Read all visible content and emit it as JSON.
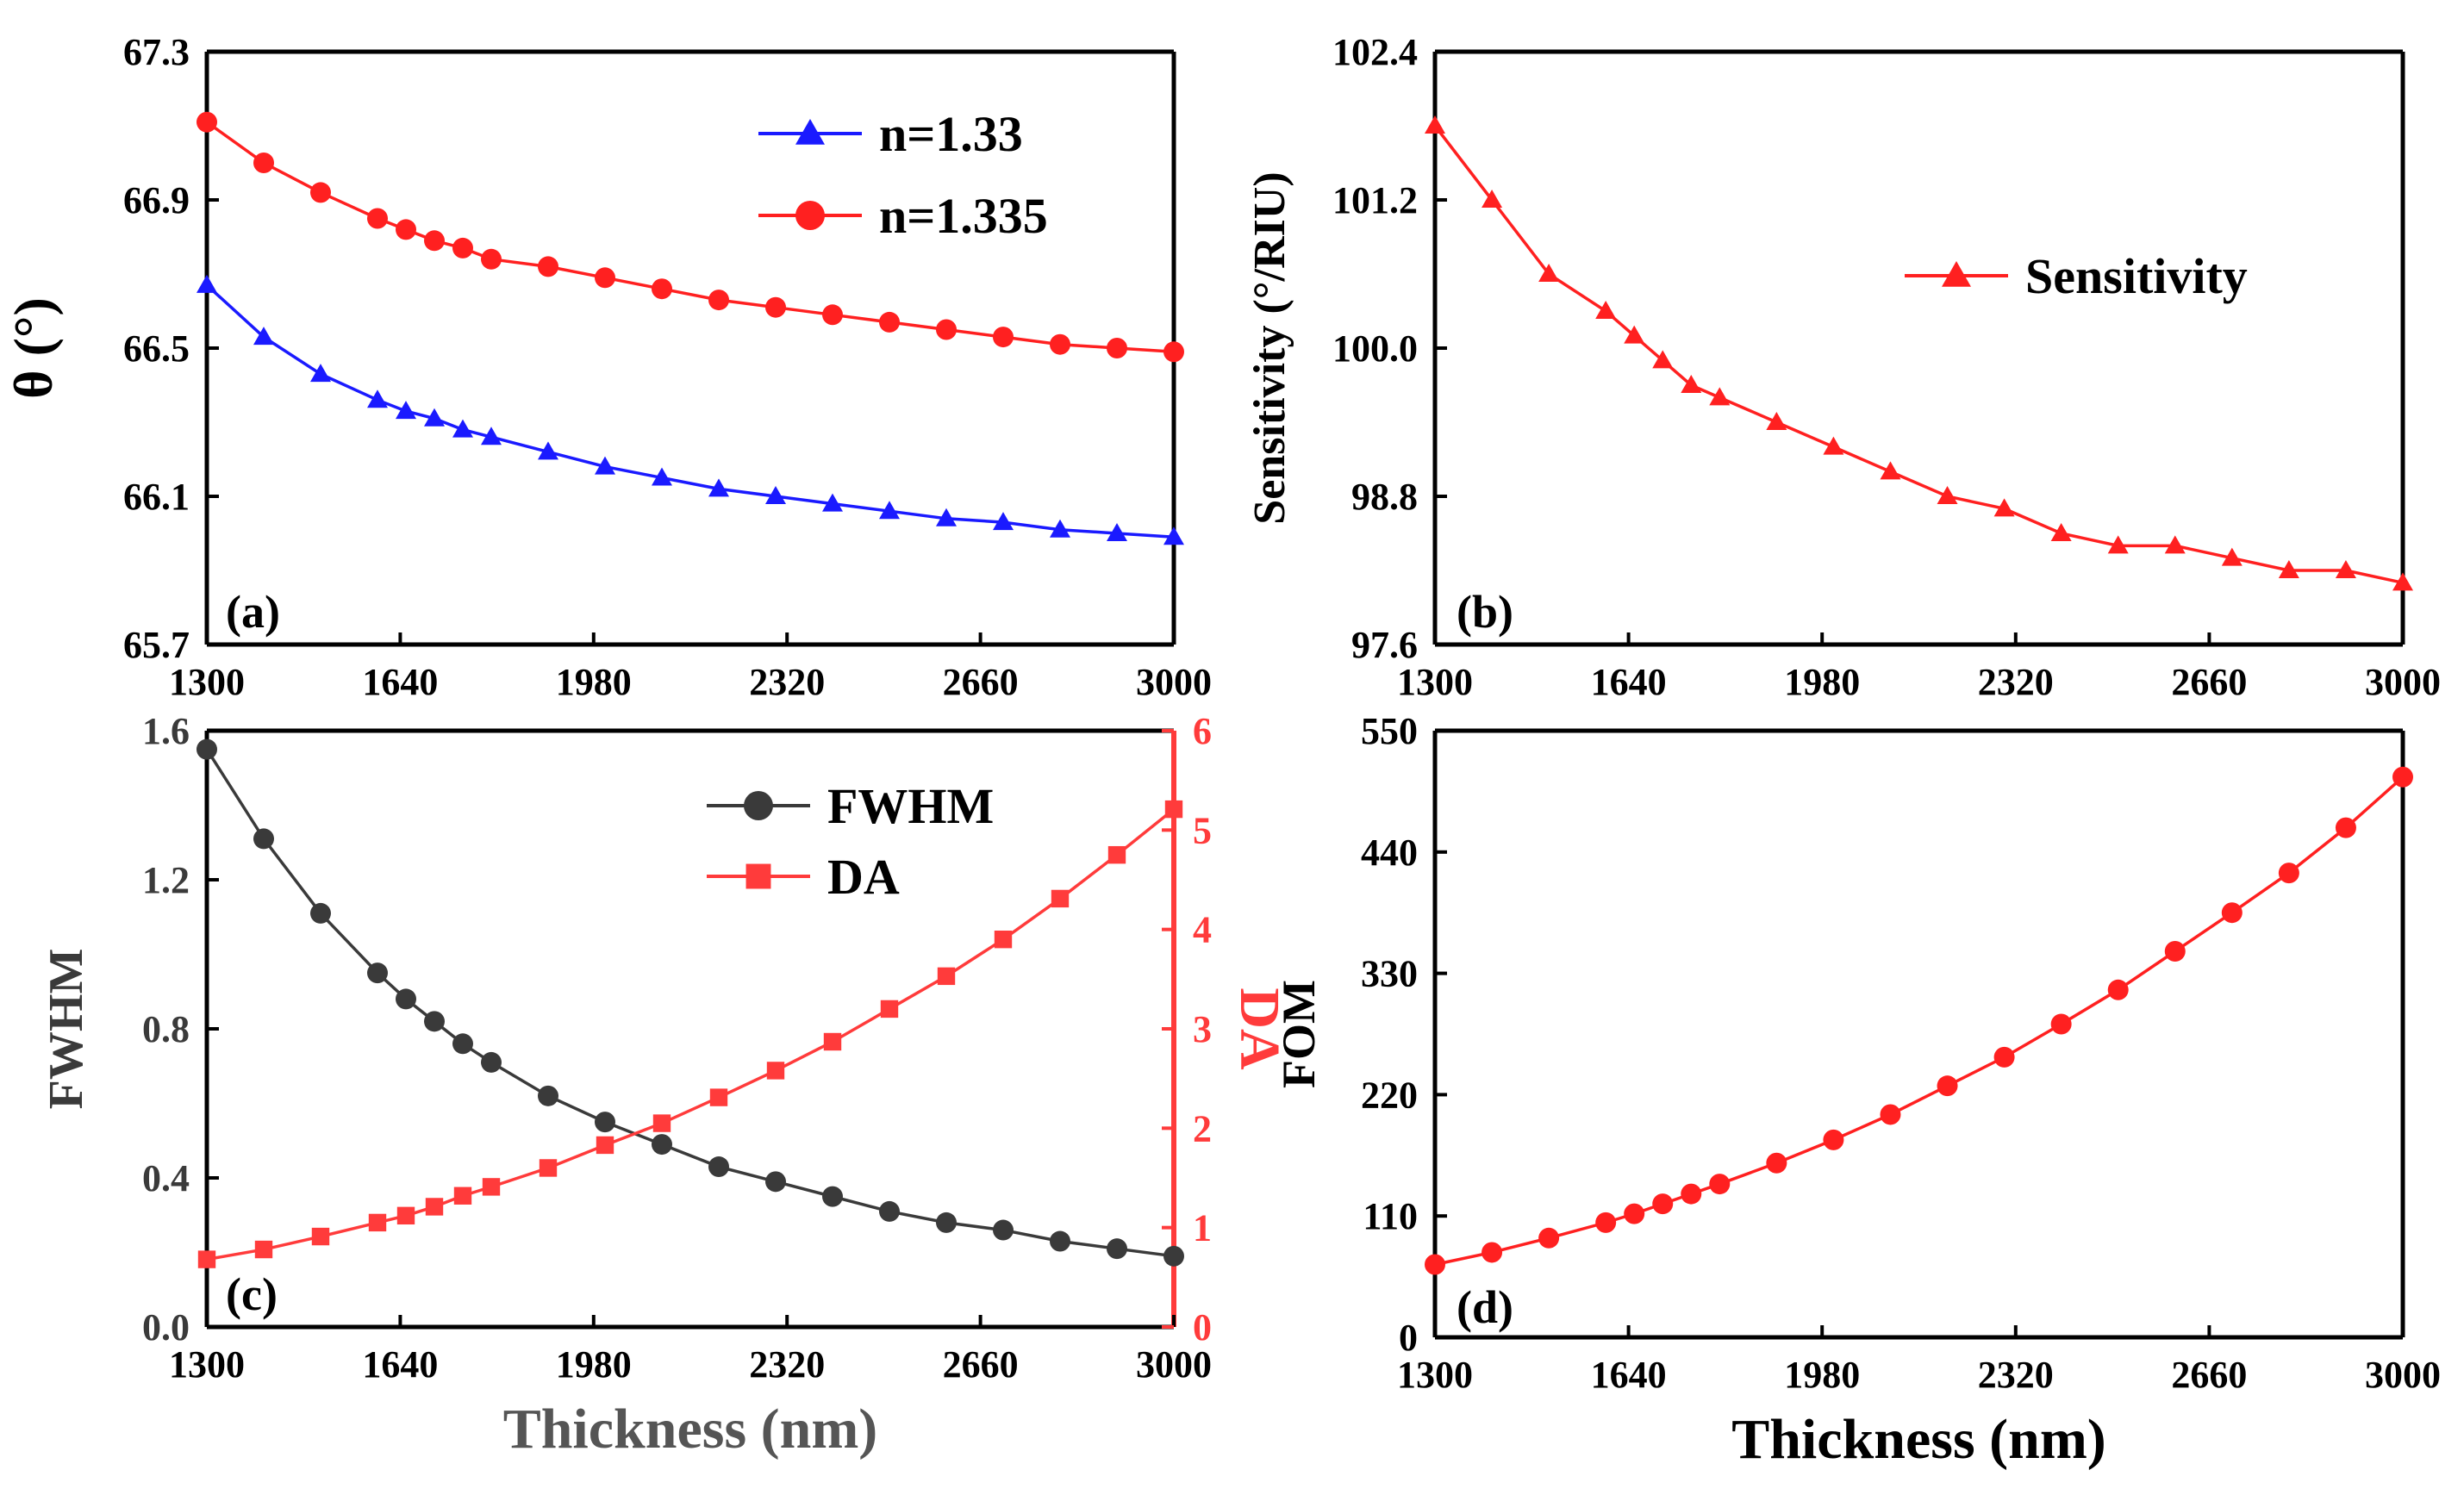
{
  "colors": {
    "blue": "#1a1aff",
    "red": "#ff2020",
    "dark": "#3a3a3a",
    "lightred": "#ff3b3b",
    "axis": "#000000"
  },
  "chart_data": [
    {
      "id": "a",
      "type": "line",
      "panel_label": "(a)",
      "xlabel": "",
      "ylabel": "θ (°)",
      "xlim": [
        1300,
        3000
      ],
      "ylim": [
        65.7,
        67.3
      ],
      "xticks": [
        "1300",
        "1640",
        "1980",
        "2320",
        "2660",
        "3000"
      ],
      "yticks": [
        "65.7",
        "66.1",
        "66.5",
        "66.9",
        "67.3"
      ],
      "x": [
        1300,
        1400,
        1500,
        1600,
        1650,
        1700,
        1750,
        1800,
        1900,
        2000,
        2100,
        2200,
        2300,
        2400,
        2500,
        2600,
        2700,
        2800,
        2900,
        3000
      ],
      "series": [
        {
          "name": "n=1.33",
          "marker": "triangle",
          "color": "#1a1aff",
          "values": [
            66.67,
            66.53,
            66.43,
            66.36,
            66.33,
            66.31,
            66.28,
            66.26,
            66.22,
            66.18,
            66.15,
            66.12,
            66.1,
            66.08,
            66.06,
            66.04,
            66.03,
            66.01,
            66.0,
            65.99
          ]
        },
        {
          "name": "n=1.335",
          "marker": "circle",
          "color": "#ff2020",
          "values": [
            67.11,
            67.0,
            66.92,
            66.85,
            66.82,
            66.79,
            66.77,
            66.74,
            66.72,
            66.69,
            66.66,
            66.63,
            66.61,
            66.59,
            66.57,
            66.55,
            66.53,
            66.51,
            66.5,
            66.49
          ]
        }
      ]
    },
    {
      "id": "b",
      "type": "line",
      "panel_label": "(b)",
      "xlabel": "",
      "ylabel": "Sensitivity (°/RIU)",
      "xlim": [
        1300,
        3000
      ],
      "ylim": [
        97.6,
        102.4
      ],
      "xticks": [
        "1300",
        "1640",
        "1980",
        "2320",
        "2660",
        "3000"
      ],
      "yticks": [
        "97.6",
        "98.8",
        "100.0",
        "101.2",
        "102.4"
      ],
      "x": [
        1300,
        1400,
        1500,
        1600,
        1650,
        1700,
        1750,
        1800,
        1900,
        2000,
        2100,
        2200,
        2300,
        2400,
        2500,
        2600,
        2700,
        2800,
        2900,
        3000
      ],
      "series": [
        {
          "name": "Sensitivity",
          "marker": "triangle",
          "color": "#ff2020",
          "values": [
            101.8,
            101.2,
            100.6,
            100.3,
            100.1,
            99.9,
            99.7,
            99.6,
            99.4,
            99.2,
            99.0,
            98.8,
            98.7,
            98.5,
            98.4,
            98.4,
            98.3,
            98.2,
            98.2,
            98.1
          ]
        }
      ]
    },
    {
      "id": "c",
      "type": "line",
      "panel_label": "(c)",
      "xlabel": "Thickness (nm)",
      "ylabel": "FWHM",
      "y2label": "DA",
      "xlim": [
        1300,
        3000
      ],
      "ylim": [
        0.0,
        1.6
      ],
      "y2lim": [
        0,
        6
      ],
      "xticks": [
        "1300",
        "1640",
        "1980",
        "2320",
        "2660",
        "3000"
      ],
      "yticks": [
        "0.0",
        "0.4",
        "0.8",
        "1.2",
        "1.6"
      ],
      "y2ticks": [
        "0",
        "1",
        "2",
        "3",
        "4",
        "5",
        "6"
      ],
      "x": [
        1300,
        1400,
        1500,
        1600,
        1650,
        1700,
        1750,
        1800,
        1900,
        2000,
        2100,
        2200,
        2300,
        2400,
        2500,
        2600,
        2700,
        2800,
        2900,
        3000
      ],
      "series": [
        {
          "name": "FWHM",
          "marker": "circle",
          "color": "#3a3a3a",
          "axis": "left",
          "values": [
            1.55,
            1.31,
            1.11,
            0.95,
            0.88,
            0.82,
            0.76,
            0.71,
            0.62,
            0.55,
            0.49,
            0.43,
            0.39,
            0.35,
            0.31,
            0.28,
            0.26,
            0.23,
            0.21,
            0.19
          ]
        },
        {
          "name": "DA",
          "marker": "square",
          "color": "#ff3b3b",
          "axis": "right",
          "values": [
            0.68,
            0.78,
            0.91,
            1.05,
            1.12,
            1.21,
            1.32,
            1.41,
            1.6,
            1.83,
            2.05,
            2.31,
            2.58,
            2.87,
            3.2,
            3.53,
            3.9,
            4.31,
            4.75,
            5.21
          ]
        }
      ]
    },
    {
      "id": "d",
      "type": "line",
      "panel_label": "(d)",
      "xlabel": "Thickness (nm)",
      "ylabel": "FOM",
      "xlim": [
        1300,
        3000
      ],
      "ylim": [
        0,
        550
      ],
      "xticks": [
        "1300",
        "1640",
        "1980",
        "2320",
        "2660",
        "3000"
      ],
      "yticks": [
        "0",
        "110",
        "220",
        "330",
        "440",
        "550"
      ],
      "x": [
        1300,
        1400,
        1500,
        1600,
        1650,
        1700,
        1750,
        1800,
        1900,
        2000,
        2100,
        2200,
        2300,
        2400,
        2500,
        2600,
        2700,
        2800,
        2900,
        3000
      ],
      "series": [
        {
          "name": "FOM",
          "marker": "circle",
          "color": "#ff2020",
          "values": [
            66,
            77,
            90,
            104,
            112,
            121,
            130,
            139,
            158,
            179,
            202,
            228,
            254,
            284,
            315,
            350,
            385,
            421,
            462,
            508
          ]
        }
      ]
    }
  ]
}
